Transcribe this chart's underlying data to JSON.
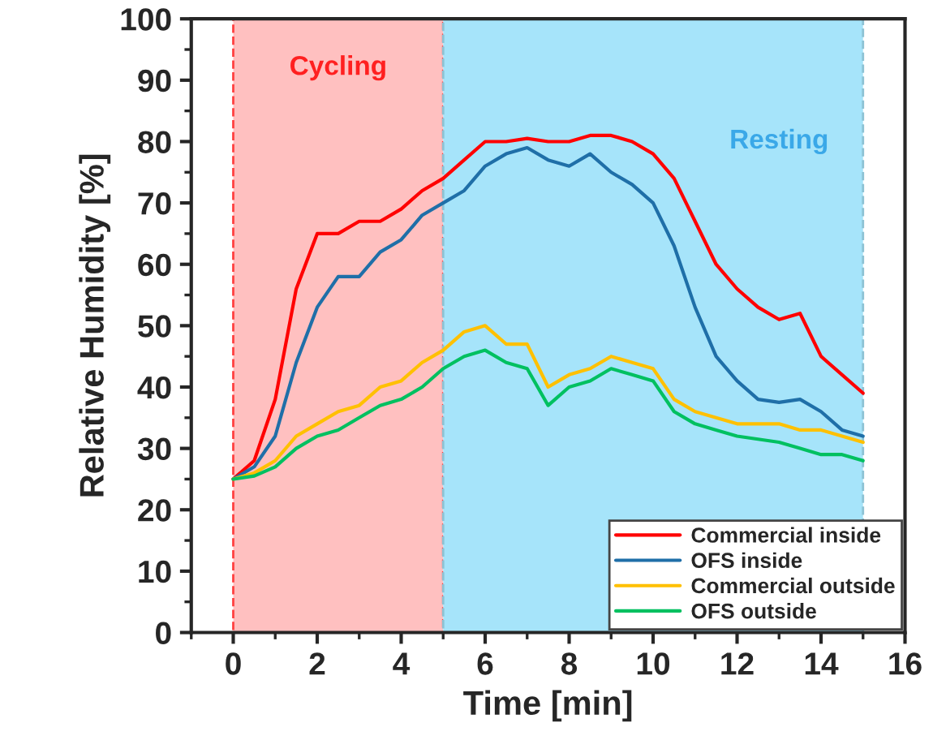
{
  "chart_data": {
    "type": "line",
    "xlabel": "Time [min]",
    "ylabel": "Relative Humidity [%]",
    "x": [
      0,
      0.5,
      1,
      1.5,
      2,
      2.5,
      3,
      3.5,
      4,
      4.5,
      5,
      5.5,
      6,
      6.5,
      7,
      7.5,
      8,
      8.5,
      9,
      9.5,
      10,
      10.5,
      11,
      11.5,
      12,
      12.5,
      13,
      13.5,
      14,
      14.5,
      15
    ],
    "series": [
      {
        "name": "Commercial inside",
        "color": "#ff0000",
        "values": [
          25,
          28,
          38,
          56,
          65,
          65,
          67,
          67,
          69,
          72,
          74,
          77,
          80,
          80,
          80.5,
          80,
          80,
          81,
          81,
          80,
          78,
          74,
          67,
          60,
          56,
          53,
          51,
          52,
          45,
          42,
          39
        ]
      },
      {
        "name": "OFS inside",
        "color": "#1f6fa8",
        "values": [
          25,
          27,
          32,
          44,
          53,
          58,
          58,
          62,
          64,
          68,
          70,
          72,
          76,
          78,
          79,
          77,
          76,
          78,
          75,
          73,
          70,
          63,
          53,
          45,
          41,
          38,
          37.5,
          38,
          36,
          33,
          32
        ]
      },
      {
        "name": "Commercial outside",
        "color": "#ffc000",
        "values": [
          25,
          26,
          28,
          32,
          34,
          36,
          37,
          40,
          41,
          44,
          46,
          49,
          50,
          47,
          47,
          40,
          42,
          43,
          45,
          44,
          43,
          38,
          36,
          35,
          34,
          34,
          34,
          33,
          33,
          32,
          31
        ]
      },
      {
        "name": "OFS outside",
        "color": "#00c060",
        "values": [
          25,
          25.5,
          27,
          30,
          32,
          33,
          35,
          37,
          38,
          40,
          43,
          45,
          46,
          44,
          43,
          37,
          40,
          41,
          43,
          42,
          41,
          36,
          34,
          33,
          32,
          31.5,
          31,
          30,
          29,
          29,
          28
        ]
      }
    ],
    "bands": [
      {
        "axis": "x",
        "from": 0,
        "to": 5,
        "label": "Cycling",
        "color": "#ffc0c0"
      },
      {
        "axis": "x",
        "from": 5,
        "to": 15,
        "label": "Resting",
        "color": "#a6e4fa"
      }
    ],
    "xlim": [
      -1,
      16
    ],
    "xticks": [
      0,
      2,
      4,
      6,
      8,
      10,
      12,
      14,
      16
    ],
    "ylim": [
      0,
      100
    ],
    "yticks": [
      0,
      10,
      20,
      30,
      40,
      50,
      60,
      70,
      80,
      90,
      100
    ],
    "grid": false,
    "legend": "bottom right",
    "line_style": "solid",
    "marker": "none"
  }
}
